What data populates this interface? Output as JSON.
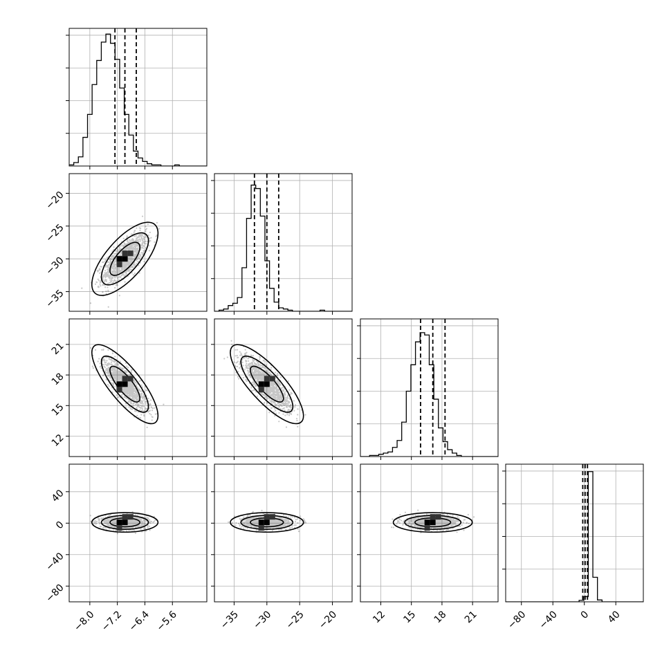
{
  "chart_data": {
    "type": "corner",
    "parameters": [
      {
        "range": [
          -8.6,
          -4.6
        ],
        "ticks": [
          -8.0,
          -7.2,
          -6.4,
          -5.6
        ],
        "tick_labels": [
          "−8.0",
          "−7.2",
          "−6.4",
          "−5.6"
        ],
        "quantiles": [
          -7.27,
          -6.98,
          -6.65
        ],
        "hist_max": 120,
        "histogram": [
          1,
          3,
          8,
          25,
          45,
          71,
          92,
          108,
          115,
          107,
          93,
          68,
          45,
          27,
          13,
          7,
          4,
          2,
          1,
          1,
          0,
          0,
          0,
          1,
          0,
          0,
          0,
          0,
          0,
          0
        ]
      },
      {
        "range": [
          -38,
          -17
        ],
        "ticks": [
          -35,
          -30,
          -25,
          -20
        ],
        "tick_labels": [
          "−35",
          "−30",
          "−25",
          "−20"
        ],
        "quantiles": [
          -31.9,
          -30.0,
          -28.2
        ],
        "hist_max": 120,
        "histogram": [
          0,
          1,
          2,
          5,
          7,
          12,
          38,
          81,
          110,
          107,
          83,
          44,
          20,
          8,
          3,
          2,
          1,
          0,
          0,
          0,
          0,
          0,
          0,
          1,
          0,
          0,
          0,
          0,
          0,
          0
        ]
      },
      {
        "range": [
          10.0,
          23.5
        ],
        "ticks": [
          12,
          15,
          18,
          21
        ],
        "tick_labels": [
          "12",
          "15",
          "18",
          "21"
        ],
        "quantiles": [
          15.9,
          17.1,
          18.3
        ],
        "hist_max": 120,
        "histogram": [
          0,
          0,
          1,
          1,
          2,
          3,
          4,
          8,
          14,
          30,
          57,
          80,
          100,
          108,
          106,
          80,
          50,
          25,
          13,
          6,
          3,
          1,
          0,
          0,
          0,
          0,
          0,
          0,
          0,
          0
        ]
      },
      {
        "range": [
          -100,
          75
        ],
        "ticks": [
          -80,
          -40,
          0,
          40
        ],
        "tick_labels": [
          "−80",
          "−40",
          "0",
          "40"
        ],
        "quantiles": [
          -2.0,
          1.0,
          4.0
        ],
        "hist_max": 370,
        "histogram": [
          0,
          0,
          0,
          0,
          0,
          0,
          0,
          0,
          0,
          0,
          0,
          0,
          0,
          0,
          0,
          0,
          4,
          14,
          350,
          66,
          5,
          0,
          0,
          0,
          0,
          0,
          0,
          0,
          0,
          0
        ]
      }
    ],
    "correlations": [
      [
        null,
        null,
        null,
        null
      ],
      [
        0.7,
        null,
        null,
        null
      ],
      [
        -0.8,
        -0.8,
        null,
        null
      ],
      [
        0.0,
        0.0,
        0.0,
        null
      ]
    ],
    "stddev": [
      0.31,
      1.8,
      1.25,
      4.0
    ],
    "means": [
      -6.98,
      -30.0,
      17.1,
      1.0
    ],
    "contour_levels": [
      1.4,
      2.2,
      3.1
    ],
    "hist2d_bins": 20,
    "grid": true
  }
}
